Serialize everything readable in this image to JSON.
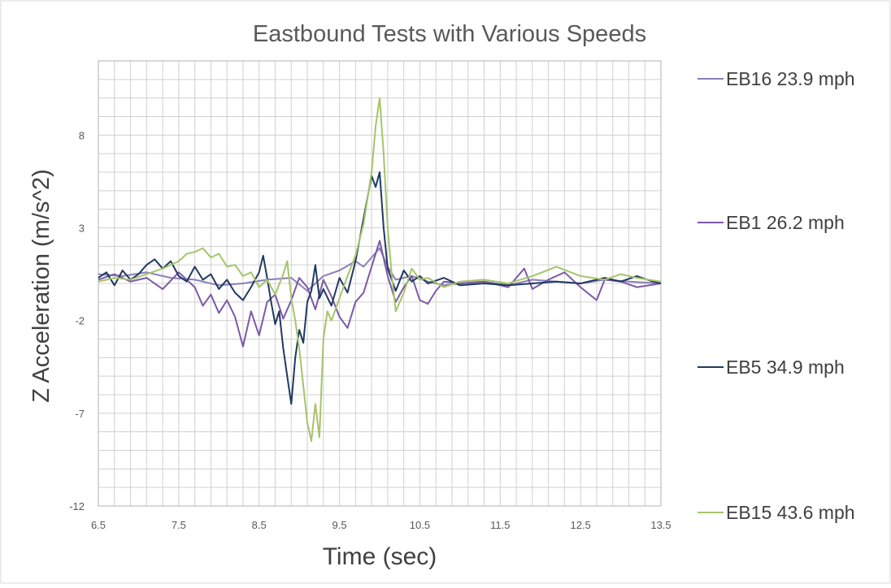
{
  "chart_data": {
    "type": "line",
    "title": "Eastbound Tests with Various Speeds",
    "xlabel": "Time (sec)",
    "ylabel": "Z Acceleration (m/s^2)",
    "xlim": [
      6.5,
      13.5
    ],
    "ylim": [
      -12,
      12
    ],
    "xticks": [
      "6.5",
      "7.5",
      "8.5",
      "9.5",
      "10.5",
      "11.5",
      "12.5",
      "13.5"
    ],
    "yticks": [
      "-12",
      "-7",
      "-2",
      "3",
      "8"
    ],
    "grid": true,
    "legend_position": "right",
    "series": [
      {
        "name": "EB16 23.9 mph",
        "color": "#8b7fb8",
        "points": [
          [
            6.5,
            0.5
          ],
          [
            6.8,
            0.4
          ],
          [
            7.1,
            0.6
          ],
          [
            7.4,
            0.3
          ],
          [
            7.7,
            0.2
          ],
          [
            8.0,
            -0.1
          ],
          [
            8.3,
            0.0
          ],
          [
            8.6,
            0.2
          ],
          [
            8.9,
            0.3
          ],
          [
            9.1,
            -0.4
          ],
          [
            9.3,
            0.4
          ],
          [
            9.5,
            0.7
          ],
          [
            9.7,
            1.2
          ],
          [
            9.8,
            0.9
          ],
          [
            9.9,
            1.4
          ],
          [
            10.0,
            1.9
          ],
          [
            10.1,
            0.9
          ],
          [
            10.2,
            0.2
          ],
          [
            10.4,
            0.4
          ],
          [
            10.6,
            0.1
          ],
          [
            10.8,
            -0.1
          ],
          [
            11.0,
            0.0
          ],
          [
            11.3,
            0.1
          ],
          [
            11.6,
            -0.1
          ],
          [
            11.9,
            0.2
          ],
          [
            12.2,
            0.1
          ],
          [
            12.5,
            0.0
          ],
          [
            12.8,
            0.2
          ],
          [
            13.1,
            0.1
          ],
          [
            13.5,
            0.0
          ]
        ]
      },
      {
        "name": "EB1 26.2 mph",
        "color": "#7c59a6",
        "points": [
          [
            6.5,
            0.2
          ],
          [
            6.7,
            0.5
          ],
          [
            6.9,
            0.1
          ],
          [
            7.1,
            0.3
          ],
          [
            7.3,
            -0.3
          ],
          [
            7.5,
            0.6
          ],
          [
            7.7,
            -0.2
          ],
          [
            7.8,
            -1.2
          ],
          [
            7.9,
            -0.6
          ],
          [
            8.0,
            -1.6
          ],
          [
            8.1,
            -0.9
          ],
          [
            8.2,
            -1.8
          ],
          [
            8.3,
            -3.4
          ],
          [
            8.4,
            -1.5
          ],
          [
            8.5,
            -2.8
          ],
          [
            8.6,
            -1.0
          ],
          [
            8.7,
            -0.6
          ],
          [
            8.8,
            -1.9
          ],
          [
            8.9,
            -0.9
          ],
          [
            9.0,
            0.3
          ],
          [
            9.1,
            -0.2
          ],
          [
            9.2,
            -1.4
          ],
          [
            9.3,
            0.2
          ],
          [
            9.4,
            -0.7
          ],
          [
            9.5,
            -1.8
          ],
          [
            9.6,
            -2.4
          ],
          [
            9.7,
            -1.0
          ],
          [
            9.8,
            -0.5
          ],
          [
            9.9,
            0.9
          ],
          [
            10.0,
            2.3
          ],
          [
            10.1,
            0.4
          ],
          [
            10.2,
            -1.0
          ],
          [
            10.3,
            -0.2
          ],
          [
            10.4,
            0.4
          ],
          [
            10.5,
            -0.9
          ],
          [
            10.6,
            -1.1
          ],
          [
            10.7,
            -0.4
          ],
          [
            10.8,
            0.1
          ],
          [
            11.0,
            0.0
          ],
          [
            11.3,
            0.1
          ],
          [
            11.6,
            -0.2
          ],
          [
            11.8,
            0.8
          ],
          [
            11.9,
            -0.3
          ],
          [
            12.1,
            0.2
          ],
          [
            12.3,
            0.6
          ],
          [
            12.5,
            -0.2
          ],
          [
            12.7,
            -0.9
          ],
          [
            12.8,
            0.2
          ],
          [
            13.0,
            0.1
          ],
          [
            13.2,
            -0.2
          ],
          [
            13.5,
            0.0
          ]
        ]
      },
      {
        "name": "EB5 34.9 mph",
        "color": "#1f3a5f",
        "points": [
          [
            6.5,
            0.3
          ],
          [
            6.6,
            0.6
          ],
          [
            6.7,
            -0.1
          ],
          [
            6.8,
            0.7
          ],
          [
            6.9,
            0.2
          ],
          [
            7.0,
            0.5
          ],
          [
            7.1,
            1.0
          ],
          [
            7.2,
            1.3
          ],
          [
            7.3,
            0.8
          ],
          [
            7.4,
            1.2
          ],
          [
            7.5,
            0.4
          ],
          [
            7.6,
            0.1
          ],
          [
            7.7,
            0.9
          ],
          [
            7.8,
            0.2
          ],
          [
            7.9,
            0.5
          ],
          [
            8.0,
            -0.3
          ],
          [
            8.1,
            0.2
          ],
          [
            8.2,
            -0.5
          ],
          [
            8.3,
            -0.9
          ],
          [
            8.4,
            -0.2
          ],
          [
            8.5,
            0.6
          ],
          [
            8.55,
            1.5
          ],
          [
            8.6,
            0.3
          ],
          [
            8.65,
            -1.0
          ],
          [
            8.7,
            -2.2
          ],
          [
            8.75,
            -1.5
          ],
          [
            8.8,
            -3.5
          ],
          [
            8.85,
            -5.0
          ],
          [
            8.9,
            -6.5
          ],
          [
            8.95,
            -4.0
          ],
          [
            9.0,
            -2.5
          ],
          [
            9.05,
            -3.2
          ],
          [
            9.1,
            -1.0
          ],
          [
            9.15,
            -0.4
          ],
          [
            9.2,
            1.0
          ],
          [
            9.25,
            -0.8
          ],
          [
            9.3,
            -0.3
          ],
          [
            9.4,
            -1.2
          ],
          [
            9.5,
            0.3
          ],
          [
            9.6,
            -0.5
          ],
          [
            9.7,
            1.2
          ],
          [
            9.8,
            3.5
          ],
          [
            9.9,
            5.8
          ],
          [
            9.95,
            5.2
          ],
          [
            10.0,
            6.0
          ],
          [
            10.05,
            3.0
          ],
          [
            10.1,
            0.8
          ],
          [
            10.2,
            -0.4
          ],
          [
            10.3,
            0.7
          ],
          [
            10.4,
            0.1
          ],
          [
            10.5,
            0.4
          ],
          [
            10.6,
            0.0
          ],
          [
            10.8,
            0.3
          ],
          [
            11.0,
            -0.1
          ],
          [
            11.3,
            0.0
          ],
          [
            11.6,
            -0.1
          ],
          [
            11.9,
            0.0
          ],
          [
            12.2,
            0.1
          ],
          [
            12.5,
            0.0
          ],
          [
            12.8,
            0.3
          ],
          [
            13.0,
            0.1
          ],
          [
            13.2,
            0.4
          ],
          [
            13.4,
            0.1
          ],
          [
            13.5,
            0.0
          ]
        ]
      },
      {
        "name": "EB15 43.6 mph",
        "color": "#a6c46a",
        "points": [
          [
            6.5,
            0.1
          ],
          [
            6.7,
            0.3
          ],
          [
            6.9,
            0.2
          ],
          [
            7.1,
            0.5
          ],
          [
            7.3,
            0.8
          ],
          [
            7.5,
            1.2
          ],
          [
            7.6,
            1.6
          ],
          [
            7.7,
            1.7
          ],
          [
            7.8,
            1.9
          ],
          [
            7.9,
            1.4
          ],
          [
            8.0,
            1.6
          ],
          [
            8.1,
            0.9
          ],
          [
            8.2,
            1.0
          ],
          [
            8.3,
            0.4
          ],
          [
            8.4,
            0.6
          ],
          [
            8.5,
            -0.2
          ],
          [
            8.6,
            0.2
          ],
          [
            8.7,
            -0.6
          ],
          [
            8.8,
            0.5
          ],
          [
            8.85,
            1.2
          ],
          [
            8.9,
            -0.8
          ],
          [
            8.95,
            -2.0
          ],
          [
            9.0,
            -3.5
          ],
          [
            9.05,
            -5.5
          ],
          [
            9.1,
            -7.5
          ],
          [
            9.15,
            -8.5
          ],
          [
            9.2,
            -6.5
          ],
          [
            9.25,
            -8.3
          ],
          [
            9.3,
            -3.0
          ],
          [
            9.35,
            -1.5
          ],
          [
            9.4,
            -2.0
          ],
          [
            9.5,
            -0.8
          ],
          [
            9.6,
            0.4
          ],
          [
            9.7,
            1.5
          ],
          [
            9.8,
            3.2
          ],
          [
            9.9,
            6.0
          ],
          [
            9.95,
            8.5
          ],
          [
            10.0,
            10.0
          ],
          [
            10.05,
            7.0
          ],
          [
            10.1,
            3.0
          ],
          [
            10.15,
            0.5
          ],
          [
            10.2,
            -1.5
          ],
          [
            10.3,
            -0.5
          ],
          [
            10.4,
            0.8
          ],
          [
            10.5,
            0.2
          ],
          [
            10.6,
            0.3
          ],
          [
            10.8,
            -0.2
          ],
          [
            11.0,
            0.1
          ],
          [
            11.3,
            0.2
          ],
          [
            11.6,
            0.0
          ],
          [
            11.9,
            0.4
          ],
          [
            12.2,
            0.9
          ],
          [
            12.5,
            0.4
          ],
          [
            12.8,
            0.2
          ],
          [
            13.0,
            0.5
          ],
          [
            13.2,
            0.3
          ],
          [
            13.5,
            0.1
          ]
        ]
      }
    ]
  }
}
